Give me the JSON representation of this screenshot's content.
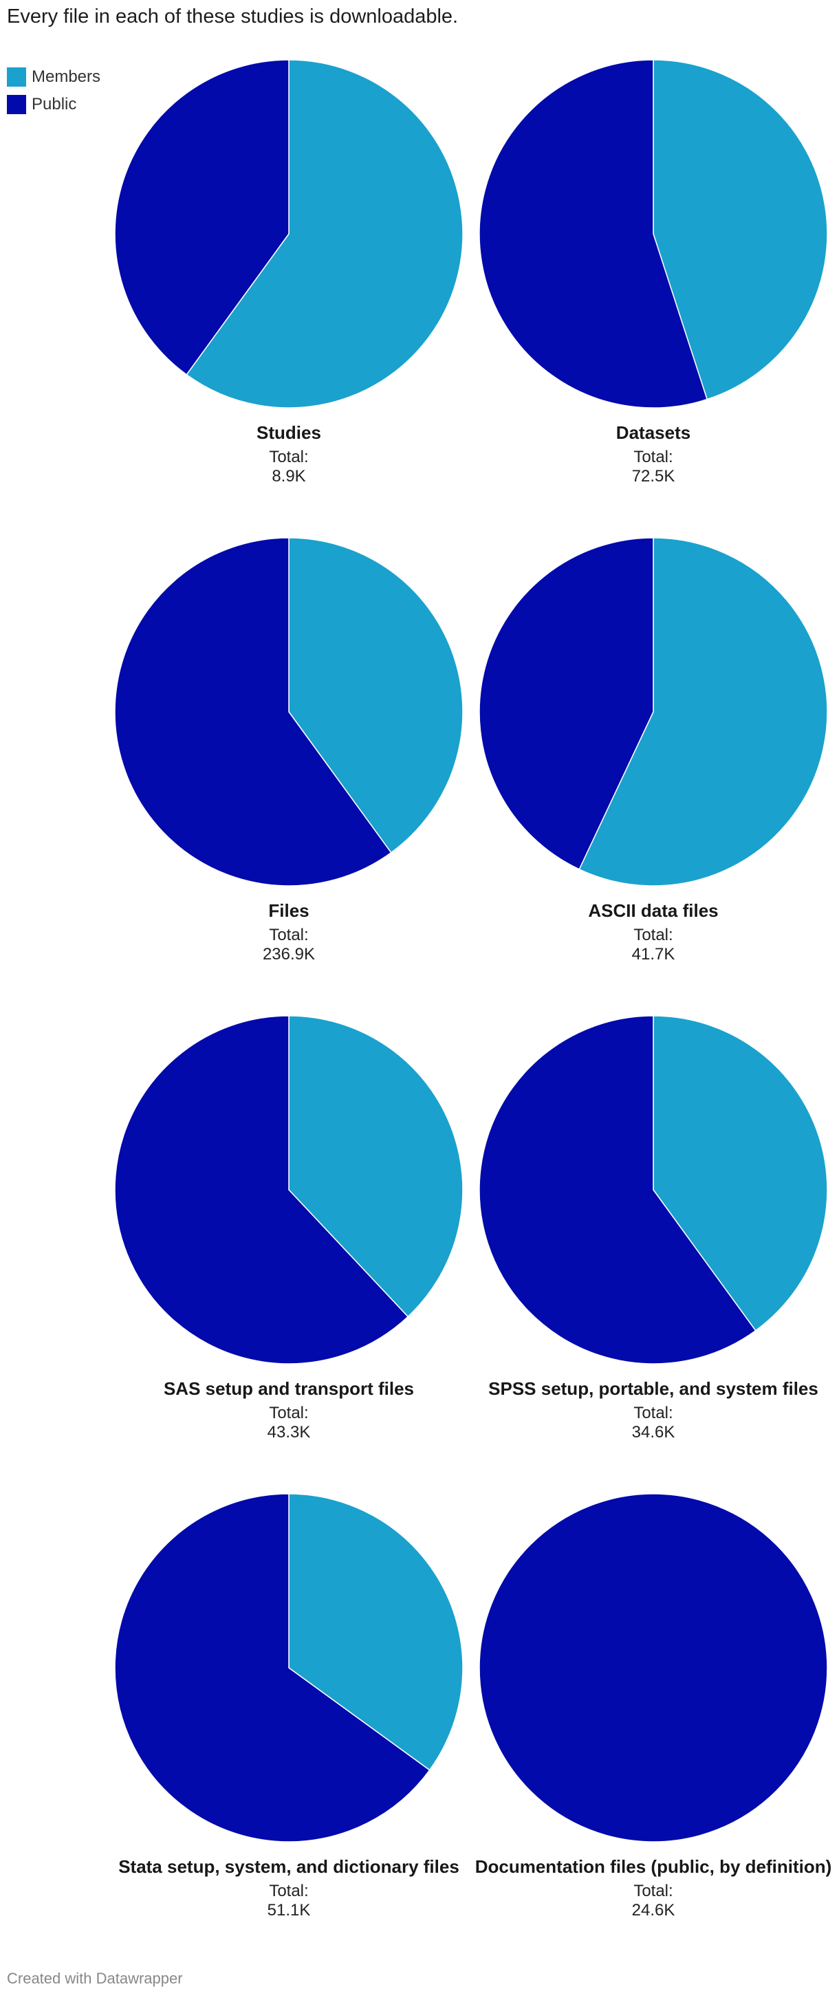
{
  "subtitle": "Every file in each of these studies is downloadable.",
  "legend": [
    {
      "label": "Members",
      "color": "#1aa1cd"
    },
    {
      "label": "Public",
      "color": "#020aab"
    }
  ],
  "total_label": "Total:",
  "footer": "Created with Datawrapper",
  "chart_data": {
    "type": "pie",
    "series_names": [
      "Members",
      "Public"
    ],
    "colors": {
      "Members": "#1aa1cd",
      "Public": "#020aab"
    },
    "charts": [
      {
        "label": "Studies",
        "total": "8.9K",
        "members_pct": 60,
        "public_pct": 40
      },
      {
        "label": "Datasets",
        "total": "72.5K",
        "members_pct": 45,
        "public_pct": 55
      },
      {
        "label": "Files",
        "total": "236.9K",
        "members_pct": 40,
        "public_pct": 60
      },
      {
        "label": "ASCII data files",
        "total": "41.7K",
        "members_pct": 57,
        "public_pct": 43
      },
      {
        "label": "SAS setup and transport files",
        "total": "43.3K",
        "members_pct": 38,
        "public_pct": 62
      },
      {
        "label": "SPSS setup, portable, and system files",
        "total": "34.6K",
        "members_pct": 40,
        "public_pct": 60
      },
      {
        "label": "Stata setup, system, and dictionary files",
        "total": "51.1K",
        "members_pct": 35,
        "public_pct": 65
      },
      {
        "label": "Documentation files (public, by definition)",
        "total": "24.6K",
        "members_pct": 0,
        "public_pct": 100
      }
    ]
  }
}
